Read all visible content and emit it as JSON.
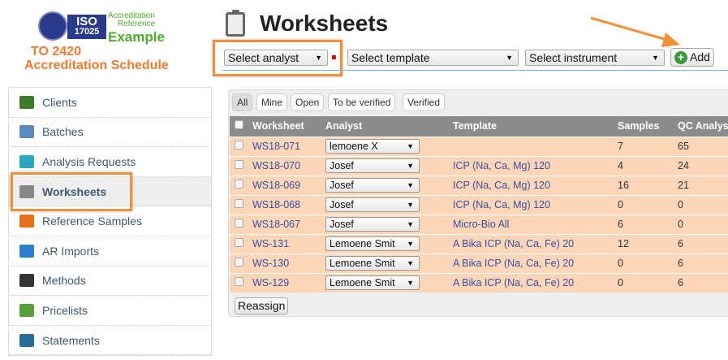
{
  "logo": {
    "iso": "ISO",
    "number": "17025",
    "accreditation": "Accreditation",
    "reference": "Reference",
    "example": "Example"
  },
  "schedule": {
    "line1": "TO 2420",
    "line2": "Accreditation Schedule"
  },
  "page": {
    "title": "Worksheets"
  },
  "toolbar": {
    "analyst": "Select analyst",
    "template": "Select template",
    "instrument": "Select instrument",
    "add": "Add"
  },
  "sidebar": {
    "items": [
      {
        "label": "Clients",
        "icon": "clients-icon",
        "color": "#3d7a2a"
      },
      {
        "label": "Batches",
        "icon": "batches-icon",
        "color": "#5a8abf"
      },
      {
        "label": "Analysis Requests",
        "icon": "droplet-icon",
        "color": "#2aa6c0"
      },
      {
        "label": "Worksheets",
        "icon": "clipboard-icon",
        "color": "#888"
      },
      {
        "label": "Reference Samples",
        "icon": "reference-icon",
        "color": "#e8701a"
      },
      {
        "label": "AR Imports",
        "icon": "folder-icon",
        "color": "#2a7fd0"
      },
      {
        "label": "Methods",
        "icon": "dropper-icon",
        "color": "#333"
      },
      {
        "label": "Pricelists",
        "icon": "pricelist-icon",
        "color": "#5aa03a"
      },
      {
        "label": "Statements",
        "icon": "envelope-icon",
        "color": "#2a6f9a"
      }
    ]
  },
  "filters": [
    "All",
    "Mine",
    "Open",
    "To be verified",
    "Verified"
  ],
  "table": {
    "headers": [
      "Worksheet",
      "Analyst",
      "Template",
      "Samples",
      "QC Analys"
    ],
    "rows": [
      {
        "id": "WS18-071",
        "analyst": "lemoene X",
        "template": "",
        "samples": "7",
        "qc": "65"
      },
      {
        "id": "WS18-070",
        "analyst": "Josef",
        "template": "ICP (Na, Ca, Mg) 120",
        "samples": "4",
        "qc": "24"
      },
      {
        "id": "WS18-069",
        "analyst": "Josef",
        "template": "ICP (Na, Ca, Mg) 120",
        "samples": "16",
        "qc": "21"
      },
      {
        "id": "WS18-068",
        "analyst": "Josef",
        "template": "ICP (Na, Ca, Mg) 120",
        "samples": "0",
        "qc": "0"
      },
      {
        "id": "WS18-067",
        "analyst": "Josef",
        "template": "Micro-Bio All",
        "samples": "6",
        "qc": "0"
      },
      {
        "id": "WS-131",
        "analyst": "Lemoene Smit",
        "template": "A Bika ICP (Na, Ca, Fe) 20",
        "samples": "12",
        "qc": "6"
      },
      {
        "id": "WS-130",
        "analyst": "Lemoene Smit",
        "template": "A Bika ICP (Na, Ca, Fe) 20",
        "samples": "0",
        "qc": "6"
      },
      {
        "id": "WS-129",
        "analyst": "Lemoene Smit",
        "template": "A Bika ICP (Na, Ca, Fe) 20",
        "samples": "0",
        "qc": "6"
      }
    ]
  },
  "reassign": "Reassign",
  "colors": {
    "highlight": "#f0913a",
    "row": "#fbd6b8",
    "header": "#8c8c8c"
  }
}
